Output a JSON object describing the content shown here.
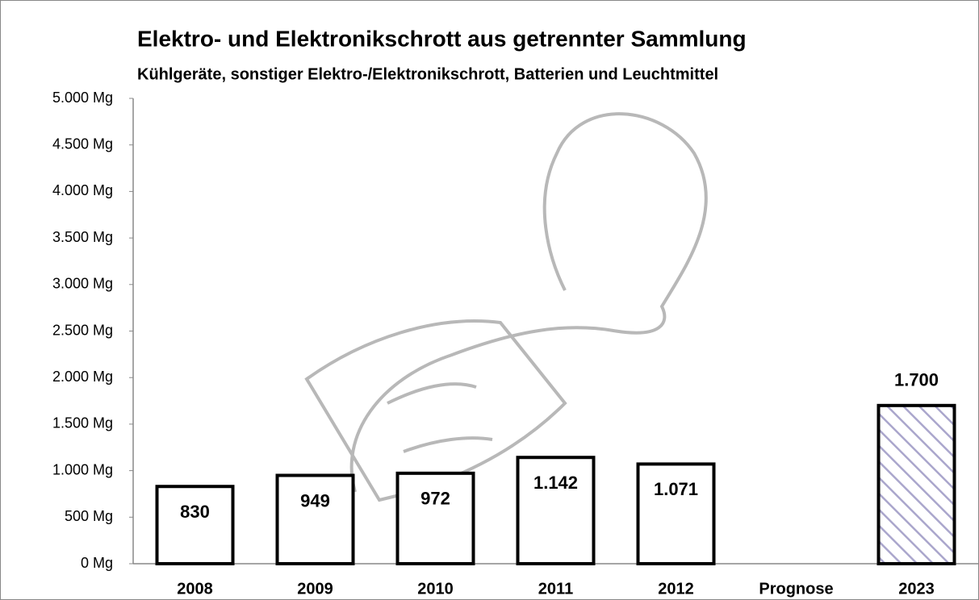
{
  "chart_data": {
    "type": "bar",
    "title": "Elektro- und Elektronikschrott aus getrennter Sammlung",
    "subtitle": "Kühlgeräte, sonstiger Elektro-/Elektronikschrott, Batterien und Leuchtmittel",
    "categories": [
      "2008",
      "2009",
      "2010",
      "2011",
      "2012",
      "Prognose",
      "2023"
    ],
    "values": [
      830,
      949,
      972,
      1142,
      1071,
      null,
      1700
    ],
    "value_labels": [
      "830",
      "949",
      "972",
      "1.142",
      "1.071",
      null,
      "1.700"
    ],
    "color": "#ffffff",
    "edge_color": "#000000",
    "hatched": [
      false,
      false,
      false,
      false,
      false,
      null,
      true
    ],
    "hatch_color": "#aaa6cc",
    "ylim": [
      0,
      5000
    ],
    "yticks": [
      {
        "value": 0,
        "label": "0 Mg"
      },
      {
        "value": 500,
        "label": "500 Mg"
      },
      {
        "value": 1000,
        "label": "1.000 Mg"
      },
      {
        "value": 1500,
        "label": "1.500 Mg"
      },
      {
        "value": 2000,
        "label": "2.000 Mg"
      },
      {
        "value": 2500,
        "label": "2.500 Mg"
      },
      {
        "value": 3000,
        "label": "3.000 Mg"
      },
      {
        "value": 3500,
        "label": "3.500 Mg"
      },
      {
        "value": 4000,
        "label": "4.000 Mg"
      },
      {
        "value": 4500,
        "label": "4.500 Mg"
      },
      {
        "value": 5000,
        "label": "5.000 Mg"
      }
    ],
    "grid": false
  }
}
